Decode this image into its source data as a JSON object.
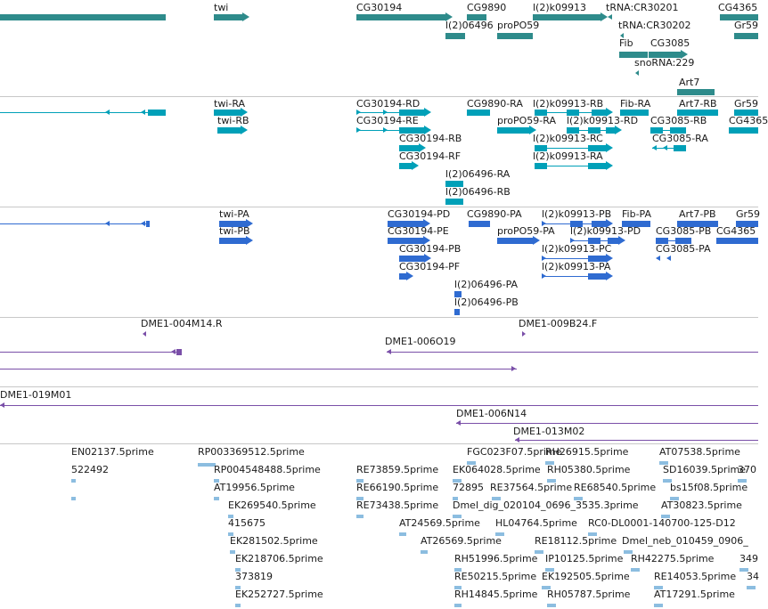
{
  "browser": {
    "name": "genome browser"
  },
  "colors": {
    "gene": "#2e8b8b",
    "transcript": "#00a0b8",
    "protein": "#2f6bd1",
    "clone": "#7a4fa8",
    "est": "#8cbde0",
    "divider": "#c8c8c8"
  },
  "tracks": {
    "gene": {
      "features": [
        {
          "name": "",
          "color": "gene"
        },
        {
          "name": "twi",
          "color": "gene"
        },
        {
          "name": "CG30194",
          "color": "gene"
        },
        {
          "name": "CG9890",
          "color": "gene"
        },
        {
          "name": "l(2)k09913",
          "color": "gene"
        },
        {
          "name": "tRNA:CR30201",
          "color": "gene"
        },
        {
          "name": "CG4365",
          "color": "gene"
        },
        {
          "name": "l(2)06496",
          "color": "gene"
        },
        {
          "name": "proPO59",
          "color": "gene"
        },
        {
          "name": "tRNA:CR30202",
          "color": "gene"
        },
        {
          "name": "Gr59",
          "color": "gene"
        },
        {
          "name": "Fib",
          "color": "gene"
        },
        {
          "name": "CG3085",
          "color": "gene"
        },
        {
          "name": "snoRNA:229",
          "color": "gene"
        },
        {
          "name": "Art7",
          "color": "gene"
        }
      ]
    },
    "transcript": {
      "features": [
        {
          "name": "",
          "color": "transcript"
        },
        {
          "name": "twi-RA",
          "color": "transcript"
        },
        {
          "name": "twi-RB",
          "color": "transcript"
        },
        {
          "name": "CG30194-RD",
          "color": "transcript"
        },
        {
          "name": "CG30194-RE",
          "color": "transcript"
        },
        {
          "name": "CG30194-RB",
          "color": "transcript"
        },
        {
          "name": "CG30194-RF",
          "color": "transcript"
        },
        {
          "name": "CG9890-RA",
          "color": "transcript"
        },
        {
          "name": "proPO59-RA",
          "color": "transcript"
        },
        {
          "name": "l(2)k09913-RB",
          "color": "transcript"
        },
        {
          "name": "l(2)k09913-RD",
          "color": "transcript"
        },
        {
          "name": "l(2)k09913-RC",
          "color": "transcript"
        },
        {
          "name": "l(2)k09913-RA",
          "color": "transcript"
        },
        {
          "name": "Fib-RA",
          "color": "transcript"
        },
        {
          "name": "CG3085-RB",
          "color": "transcript"
        },
        {
          "name": "CG3085-RA",
          "color": "transcript"
        },
        {
          "name": "Art7-RB",
          "color": "transcript"
        },
        {
          "name": "CG4365",
          "color": "transcript"
        },
        {
          "name": "Gr59",
          "color": "transcript"
        },
        {
          "name": "l(2)06496-RA",
          "color": "transcript"
        },
        {
          "name": "l(2)06496-RB",
          "color": "transcript"
        }
      ]
    },
    "protein": {
      "features": [
        {
          "name": "",
          "color": "protein"
        },
        {
          "name": "twi-PA",
          "color": "protein"
        },
        {
          "name": "twi-PB",
          "color": "protein"
        },
        {
          "name": "CG30194-PD",
          "color": "protein"
        },
        {
          "name": "CG30194-PE",
          "color": "protein"
        },
        {
          "name": "CG30194-PB",
          "color": "protein"
        },
        {
          "name": "CG30194-PF",
          "color": "protein"
        },
        {
          "name": "CG9890-PA",
          "color": "protein"
        },
        {
          "name": "proPO59-PA",
          "color": "protein"
        },
        {
          "name": "l(2)k09913-PB",
          "color": "protein"
        },
        {
          "name": "l(2)k09913-PD",
          "color": "protein"
        },
        {
          "name": "l(2)k09913-PC",
          "color": "protein"
        },
        {
          "name": "l(2)k09913-PA",
          "color": "protein"
        },
        {
          "name": "Fib-PA",
          "color": "protein"
        },
        {
          "name": "Art7-PB",
          "color": "protein"
        },
        {
          "name": "CG3085-PB",
          "color": "protein"
        },
        {
          "name": "CG3085-PA",
          "color": "protein"
        },
        {
          "name": "CG4365",
          "color": "protein"
        },
        {
          "name": "Gr59",
          "color": "protein"
        },
        {
          "name": "l(2)06496-PA",
          "color": "protein"
        },
        {
          "name": "l(2)06496-PB",
          "color": "protein"
        }
      ]
    },
    "clone": {
      "features": [
        {
          "name": "DME1-004M14.R",
          "color": "clone"
        },
        {
          "name": "",
          "color": "clone"
        },
        {
          "name": "DME1-009B24.F",
          "color": "clone"
        },
        {
          "name": "DME1-006O19",
          "color": "clone"
        },
        {
          "name": "",
          "color": "clone"
        }
      ]
    },
    "clone2": {
      "features": [
        {
          "name": "DME1-019M01",
          "color": "clone"
        },
        {
          "name": "DME1-006N14",
          "color": "clone"
        },
        {
          "name": "DME1-013M02",
          "color": "clone"
        }
      ]
    },
    "est": {
      "features": [
        {
          "name": "EN02137.5prime",
          "color": "est"
        },
        {
          "name": "522492",
          "color": "est"
        },
        {
          "name": "RP003369512.5prime",
          "color": "est"
        },
        {
          "name": "RP004548488.5prime",
          "color": "est"
        },
        {
          "name": "AT19956.5prime",
          "color": "est"
        },
        {
          "name": "EK269540.5prime",
          "color": "est"
        },
        {
          "name": "415675",
          "color": "est"
        },
        {
          "name": "EK281502.5prime",
          "color": "est"
        },
        {
          "name": "EK218706.5prime",
          "color": "est"
        },
        {
          "name": "373819",
          "color": "est"
        },
        {
          "name": "EK252727.5prime",
          "color": "est"
        },
        {
          "name": "RE73859.5prime",
          "color": "est"
        },
        {
          "name": "RE66190.5prime",
          "color": "est"
        },
        {
          "name": "RE73438.5prime",
          "color": "est"
        },
        {
          "name": "AT24569.5prime",
          "color": "est"
        },
        {
          "name": "AT26569.5prime",
          "color": "est"
        },
        {
          "name": "FGC023F07.5prime",
          "color": "est"
        },
        {
          "name": "EK064028.5prime",
          "color": "est"
        },
        {
          "name": "72895",
          "color": "est"
        },
        {
          "name": "RE37564.5prime",
          "color": "est"
        },
        {
          "name": "Dmel_dig_020104_0696_3535.3prime",
          "color": "est"
        },
        {
          "name": "HL04764.5prime",
          "color": "est"
        },
        {
          "name": "RH51996.5prime",
          "color": "est"
        },
        {
          "name": "RE50215.5prime",
          "color": "est"
        },
        {
          "name": "RH14845.5prime",
          "color": "est"
        },
        {
          "name": "RH26915.5prime",
          "color": "est"
        },
        {
          "name": "RH05380.5prime",
          "color": "est"
        },
        {
          "name": "RE68540.5prime",
          "color": "est"
        },
        {
          "name": "RC0-DL0001-140700-125-D12",
          "color": "est"
        },
        {
          "name": "RE18112.5prime",
          "color": "est"
        },
        {
          "name": "IP10125.5prime",
          "color": "est"
        },
        {
          "name": "EK192505.5prime",
          "color": "est"
        },
        {
          "name": "RH05787.5prime",
          "color": "est"
        },
        {
          "name": "AT07538.5prime",
          "color": "est"
        },
        {
          "name": "SD16039.5prime",
          "color": "est"
        },
        {
          "name": "bs15f08.5prime",
          "color": "est"
        },
        {
          "name": "AT30823.5prime",
          "color": "est"
        },
        {
          "name": "Dmel_neb_010459_0906_",
          "color": "est"
        },
        {
          "name": "RH42275.5prime",
          "color": "est"
        },
        {
          "name": "RE14053.5prime",
          "color": "est"
        },
        {
          "name": "AT17291.5prime",
          "color": "est"
        },
        {
          "name": "370",
          "color": "est"
        },
        {
          "name": "349",
          "color": "est"
        },
        {
          "name": "34",
          "color": "est"
        }
      ]
    }
  }
}
